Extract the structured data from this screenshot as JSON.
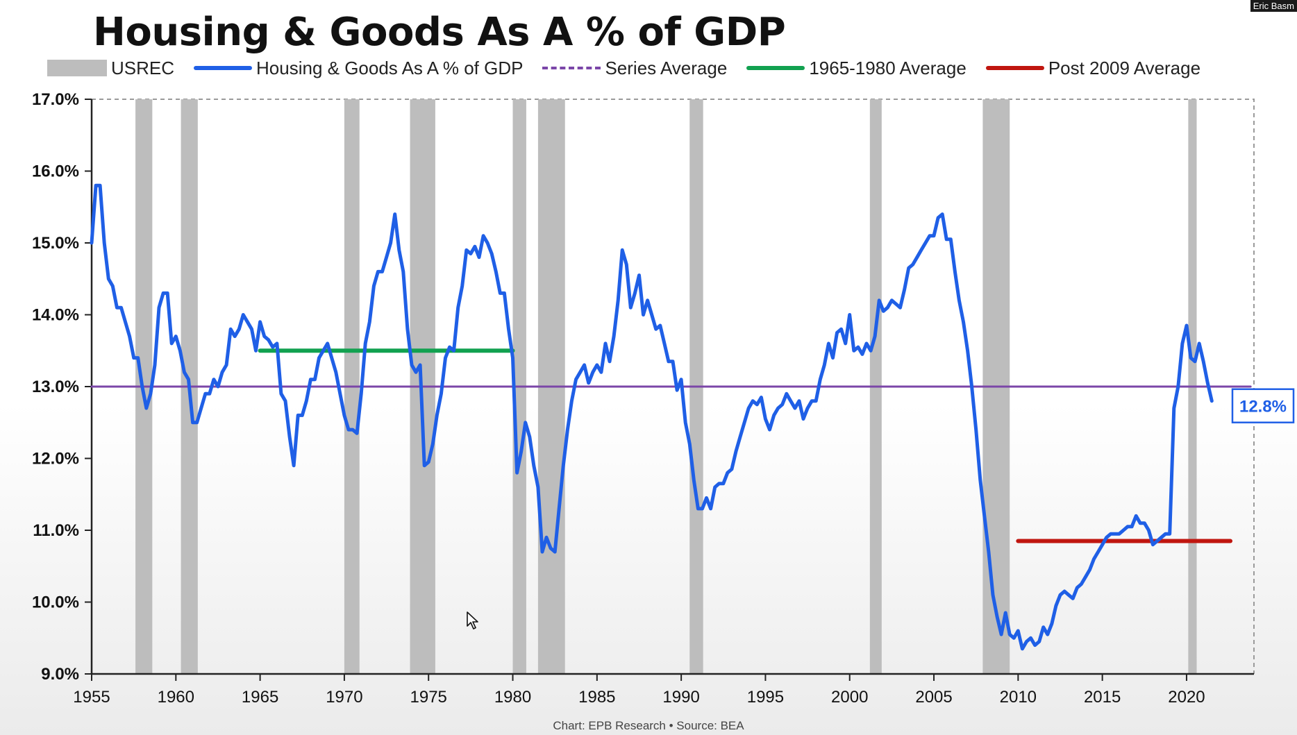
{
  "title": "Housing & Goods As A % of GDP",
  "legend": [
    {
      "label": "USREC",
      "kind": "rect",
      "color": "#bdbdbd"
    },
    {
      "label": "Housing & Goods As A % of GDP",
      "kind": "line",
      "color": "#1f5fe6"
    },
    {
      "label": "Series Average",
      "kind": "dash",
      "color": "#7b46a8"
    },
    {
      "label": "1965-1980 Average",
      "kind": "line",
      "color": "#12a150"
    },
    {
      "label": "Post 2009 Average",
      "kind": "line",
      "color": "#c0160f"
    }
  ],
  "credit": "Chart: EPB Research  •  Source: BEA",
  "camera_label": "Eric Basm",
  "chart_data": {
    "type": "line",
    "xlim": [
      1955,
      2024
    ],
    "ylim": [
      9.0,
      17.0
    ],
    "x_ticks": [
      "1955",
      "1960",
      "1965",
      "1970",
      "1975",
      "1980",
      "1985",
      "1990",
      "1995",
      "2000",
      "2005",
      "2010",
      "2015",
      "2020"
    ],
    "y_ticks": [
      "9.0%",
      "10.0%",
      "11.0%",
      "12.0%",
      "13.0%",
      "14.0%",
      "15.0%",
      "16.0%",
      "17.0%"
    ],
    "recessions": [
      [
        1957.6,
        1958.6
      ],
      [
        1960.3,
        1961.3
      ],
      [
        1970.0,
        1970.9
      ],
      [
        1973.9,
        1975.4
      ],
      [
        1980.0,
        1980.8
      ],
      [
        1981.5,
        1983.1
      ],
      [
        1990.5,
        1991.3
      ],
      [
        2001.2,
        2001.9
      ],
      [
        2007.9,
        2009.5
      ],
      [
        2020.1,
        2020.6
      ]
    ],
    "series": [
      {
        "name": "Housing & Goods As A % of GDP",
        "color": "#1f5fe6",
        "points": [
          [
            1955.0,
            15.0
          ],
          [
            1955.25,
            15.8
          ],
          [
            1955.5,
            15.8
          ],
          [
            1955.75,
            15.0
          ],
          [
            1956.0,
            14.5
          ],
          [
            1956.25,
            14.4
          ],
          [
            1956.5,
            14.1
          ],
          [
            1956.75,
            14.1
          ],
          [
            1957.0,
            13.9
          ],
          [
            1957.25,
            13.7
          ],
          [
            1957.5,
            13.4
          ],
          [
            1957.75,
            13.4
          ],
          [
            1958.0,
            13.0
          ],
          [
            1958.25,
            12.7
          ],
          [
            1958.5,
            12.9
          ],
          [
            1958.75,
            13.3
          ],
          [
            1959.0,
            14.1
          ],
          [
            1959.25,
            14.3
          ],
          [
            1959.5,
            14.3
          ],
          [
            1959.75,
            13.6
          ],
          [
            1960.0,
            13.7
          ],
          [
            1960.25,
            13.5
          ],
          [
            1960.5,
            13.2
          ],
          [
            1960.75,
            13.1
          ],
          [
            1961.0,
            12.5
          ],
          [
            1961.25,
            12.5
          ],
          [
            1961.5,
            12.7
          ],
          [
            1961.75,
            12.9
          ],
          [
            1962.0,
            12.9
          ],
          [
            1962.25,
            13.1
          ],
          [
            1962.5,
            13.0
          ],
          [
            1962.75,
            13.2
          ],
          [
            1963.0,
            13.3
          ],
          [
            1963.25,
            13.8
          ],
          [
            1963.5,
            13.7
          ],
          [
            1963.75,
            13.8
          ],
          [
            1964.0,
            14.0
          ],
          [
            1964.25,
            13.9
          ],
          [
            1964.5,
            13.8
          ],
          [
            1964.75,
            13.5
          ],
          [
            1965.0,
            13.9
          ],
          [
            1965.25,
            13.7
          ],
          [
            1965.5,
            13.65
          ],
          [
            1965.75,
            13.55
          ],
          [
            1966.0,
            13.6
          ],
          [
            1966.25,
            12.9
          ],
          [
            1966.5,
            12.8
          ],
          [
            1966.75,
            12.3
          ],
          [
            1967.0,
            11.9
          ],
          [
            1967.25,
            12.6
          ],
          [
            1967.5,
            12.6
          ],
          [
            1967.75,
            12.8
          ],
          [
            1968.0,
            13.1
          ],
          [
            1968.25,
            13.1
          ],
          [
            1968.5,
            13.4
          ],
          [
            1968.75,
            13.5
          ],
          [
            1969.0,
            13.6
          ],
          [
            1969.25,
            13.4
          ],
          [
            1969.5,
            13.2
          ],
          [
            1969.75,
            12.9
          ],
          [
            1970.0,
            12.6
          ],
          [
            1970.25,
            12.4
          ],
          [
            1970.5,
            12.4
          ],
          [
            1970.75,
            12.35
          ],
          [
            1971.0,
            12.9
          ],
          [
            1971.25,
            13.6
          ],
          [
            1971.5,
            13.9
          ],
          [
            1971.75,
            14.4
          ],
          [
            1972.0,
            14.6
          ],
          [
            1972.25,
            14.6
          ],
          [
            1972.5,
            14.8
          ],
          [
            1972.75,
            15.0
          ],
          [
            1973.0,
            15.4
          ],
          [
            1973.25,
            14.9
          ],
          [
            1973.5,
            14.6
          ],
          [
            1973.75,
            13.8
          ],
          [
            1974.0,
            13.3
          ],
          [
            1974.25,
            13.2
          ],
          [
            1974.5,
            13.3
          ],
          [
            1974.75,
            11.9
          ],
          [
            1975.0,
            11.95
          ],
          [
            1975.25,
            12.2
          ],
          [
            1975.5,
            12.6
          ],
          [
            1975.75,
            12.9
          ],
          [
            1976.0,
            13.4
          ],
          [
            1976.25,
            13.55
          ],
          [
            1976.5,
            13.5
          ],
          [
            1976.75,
            14.1
          ],
          [
            1977.0,
            14.4
          ],
          [
            1977.25,
            14.9
          ],
          [
            1977.5,
            14.85
          ],
          [
            1977.75,
            14.95
          ],
          [
            1978.0,
            14.8
          ],
          [
            1978.25,
            15.1
          ],
          [
            1978.5,
            15.0
          ],
          [
            1978.75,
            14.85
          ],
          [
            1979.0,
            14.6
          ],
          [
            1979.25,
            14.3
          ],
          [
            1979.5,
            14.3
          ],
          [
            1979.75,
            13.8
          ],
          [
            1980.0,
            13.4
          ],
          [
            1980.25,
            11.8
          ],
          [
            1980.5,
            12.1
          ],
          [
            1980.75,
            12.5
          ],
          [
            1981.0,
            12.3
          ],
          [
            1981.25,
            11.9
          ],
          [
            1981.5,
            11.6
          ],
          [
            1981.75,
            10.7
          ],
          [
            1982.0,
            10.9
          ],
          [
            1982.25,
            10.75
          ],
          [
            1982.5,
            10.7
          ],
          [
            1982.75,
            11.3
          ],
          [
            1983.0,
            11.9
          ],
          [
            1983.25,
            12.4
          ],
          [
            1983.5,
            12.8
          ],
          [
            1983.75,
            13.1
          ],
          [
            1984.0,
            13.2
          ],
          [
            1984.25,
            13.3
          ],
          [
            1984.5,
            13.05
          ],
          [
            1984.75,
            13.2
          ],
          [
            1985.0,
            13.3
          ],
          [
            1985.25,
            13.2
          ],
          [
            1985.5,
            13.6
          ],
          [
            1985.75,
            13.35
          ],
          [
            1986.0,
            13.7
          ],
          [
            1986.25,
            14.2
          ],
          [
            1986.5,
            14.9
          ],
          [
            1986.75,
            14.7
          ],
          [
            1987.0,
            14.1
          ],
          [
            1987.25,
            14.3
          ],
          [
            1987.5,
            14.55
          ],
          [
            1987.75,
            14.0
          ],
          [
            1988.0,
            14.2
          ],
          [
            1988.25,
            14.0
          ],
          [
            1988.5,
            13.8
          ],
          [
            1988.75,
            13.85
          ],
          [
            1989.0,
            13.6
          ],
          [
            1989.25,
            13.35
          ],
          [
            1989.5,
            13.35
          ],
          [
            1989.75,
            12.95
          ],
          [
            1990.0,
            13.1
          ],
          [
            1990.25,
            12.5
          ],
          [
            1990.5,
            12.2
          ],
          [
            1990.75,
            11.7
          ],
          [
            1991.0,
            11.3
          ],
          [
            1991.25,
            11.3
          ],
          [
            1991.5,
            11.45
          ],
          [
            1991.75,
            11.3
          ],
          [
            1992.0,
            11.6
          ],
          [
            1992.25,
            11.65
          ],
          [
            1992.5,
            11.65
          ],
          [
            1992.75,
            11.8
          ],
          [
            1993.0,
            11.85
          ],
          [
            1993.25,
            12.1
          ],
          [
            1993.5,
            12.3
          ],
          [
            1993.75,
            12.5
          ],
          [
            1994.0,
            12.7
          ],
          [
            1994.25,
            12.8
          ],
          [
            1994.5,
            12.75
          ],
          [
            1994.75,
            12.85
          ],
          [
            1995.0,
            12.55
          ],
          [
            1995.25,
            12.4
          ],
          [
            1995.5,
            12.6
          ],
          [
            1995.75,
            12.7
          ],
          [
            1996.0,
            12.75
          ],
          [
            1996.25,
            12.9
          ],
          [
            1996.5,
            12.8
          ],
          [
            1996.75,
            12.7
          ],
          [
            1997.0,
            12.8
          ],
          [
            1997.25,
            12.55
          ],
          [
            1997.5,
            12.7
          ],
          [
            1997.75,
            12.8
          ],
          [
            1998.0,
            12.8
          ],
          [
            1998.25,
            13.1
          ],
          [
            1998.5,
            13.3
          ],
          [
            1998.75,
            13.6
          ],
          [
            1999.0,
            13.4
          ],
          [
            1999.25,
            13.75
          ],
          [
            1999.5,
            13.8
          ],
          [
            1999.75,
            13.6
          ],
          [
            2000.0,
            14.0
          ],
          [
            2000.25,
            13.5
          ],
          [
            2000.5,
            13.55
          ],
          [
            2000.75,
            13.45
          ],
          [
            2001.0,
            13.6
          ],
          [
            2001.25,
            13.5
          ],
          [
            2001.5,
            13.7
          ],
          [
            2001.75,
            14.2
          ],
          [
            2002.0,
            14.05
          ],
          [
            2002.25,
            14.1
          ],
          [
            2002.5,
            14.2
          ],
          [
            2002.75,
            14.15
          ],
          [
            2003.0,
            14.1
          ],
          [
            2003.25,
            14.35
          ],
          [
            2003.5,
            14.65
          ],
          [
            2003.75,
            14.7
          ],
          [
            2004.0,
            14.8
          ],
          [
            2004.25,
            14.9
          ],
          [
            2004.5,
            15.0
          ],
          [
            2004.75,
            15.1
          ],
          [
            2005.0,
            15.1
          ],
          [
            2005.25,
            15.35
          ],
          [
            2005.5,
            15.4
          ],
          [
            2005.75,
            15.05
          ],
          [
            2006.0,
            15.05
          ],
          [
            2006.25,
            14.6
          ],
          [
            2006.5,
            14.2
          ],
          [
            2006.75,
            13.9
          ],
          [
            2007.0,
            13.5
          ],
          [
            2007.25,
            13.0
          ],
          [
            2007.5,
            12.4
          ],
          [
            2007.75,
            11.7
          ],
          [
            2008.0,
            11.2
          ],
          [
            2008.25,
            10.7
          ],
          [
            2008.5,
            10.1
          ],
          [
            2008.75,
            9.8
          ],
          [
            2009.0,
            9.55
          ],
          [
            2009.25,
            9.85
          ],
          [
            2009.5,
            9.55
          ],
          [
            2009.75,
            9.5
          ],
          [
            2010.0,
            9.6
          ],
          [
            2010.25,
            9.35
          ],
          [
            2010.5,
            9.45
          ],
          [
            2010.75,
            9.5
          ],
          [
            2011.0,
            9.4
          ],
          [
            2011.25,
            9.45
          ],
          [
            2011.5,
            9.65
          ],
          [
            2011.75,
            9.55
          ],
          [
            2012.0,
            9.7
          ],
          [
            2012.25,
            9.95
          ],
          [
            2012.5,
            10.1
          ],
          [
            2012.75,
            10.15
          ],
          [
            2013.0,
            10.1
          ],
          [
            2013.25,
            10.05
          ],
          [
            2013.5,
            10.2
          ],
          [
            2013.75,
            10.25
          ],
          [
            2014.0,
            10.35
          ],
          [
            2014.25,
            10.45
          ],
          [
            2014.5,
            10.6
          ],
          [
            2014.75,
            10.7
          ],
          [
            2015.0,
            10.8
          ],
          [
            2015.25,
            10.9
          ],
          [
            2015.5,
            10.95
          ],
          [
            2015.75,
            10.95
          ],
          [
            2016.0,
            10.95
          ],
          [
            2016.25,
            11.0
          ],
          [
            2016.5,
            11.05
          ],
          [
            2016.75,
            11.05
          ],
          [
            2017.0,
            11.2
          ],
          [
            2017.25,
            11.1
          ],
          [
            2017.5,
            11.1
          ],
          [
            2017.75,
            11.0
          ],
          [
            2018.0,
            10.8
          ],
          [
            2018.25,
            10.85
          ],
          [
            2018.5,
            10.9
          ],
          [
            2018.75,
            10.95
          ],
          [
            2019.0,
            10.95
          ],
          [
            2019.25,
            12.7
          ],
          [
            2019.5,
            13.0
          ],
          [
            2019.75,
            13.6
          ],
          [
            2020.0,
            13.85
          ],
          [
            2020.25,
            13.4
          ],
          [
            2020.5,
            13.35
          ],
          [
            2020.75,
            13.6
          ],
          [
            2021.0,
            13.35
          ],
          [
            2021.25,
            13.05
          ],
          [
            2021.5,
            12.8
          ]
        ]
      }
    ],
    "reference_lines": [
      {
        "name": "Series Average",
        "y": 13.0,
        "x_from": 1955,
        "x_to": 2023.8,
        "color": "#7b46a8"
      },
      {
        "name": "1965-1980 Average",
        "y": 13.5,
        "x_from": 1965,
        "x_to": 1980,
        "color": "#12a150"
      },
      {
        "name": "Post 2009 Average",
        "y": 10.85,
        "x_from": 2010,
        "x_to": 2022.6,
        "color": "#c0160f"
      }
    ],
    "end_label": "12.8%"
  }
}
